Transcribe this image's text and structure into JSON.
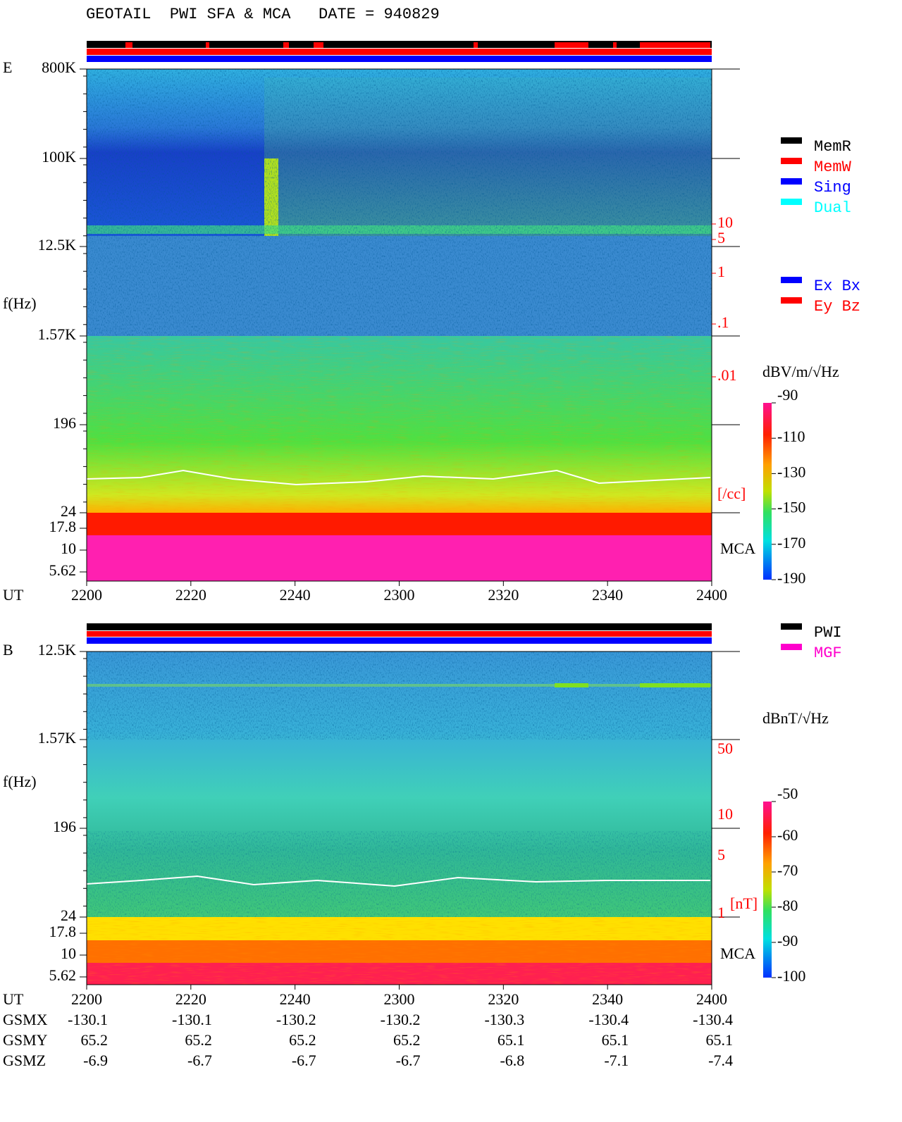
{
  "title": "GEOTAIL  PWI SFA & MCA   DATE = 940829",
  "status_legend": [
    "MemR",
    "MemW",
    "Sing",
    "Dual"
  ],
  "component_legend": [
    "Ex Bx",
    "Ey Bz"
  ],
  "panel_e": {
    "label": "E",
    "y_axis_label": "f(Hz)",
    "y_tick_labels": [
      "800K",
      "100K",
      "12.5K",
      "1.57K",
      "196",
      "24",
      "17.8",
      "10",
      "5.62"
    ],
    "x_axis_label": "UT",
    "x_tick_labels": [
      "2200",
      "2220",
      "2240",
      "2300",
      "2320",
      "2340",
      "2400"
    ],
    "mca_label": "MCA",
    "density_labels": [
      "10",
      "5",
      "1",
      ".1",
      ".01",
      "[/cc]"
    ],
    "colorbar": {
      "unit": "dBV/m/√Hz",
      "tick_labels": [
        "-90",
        "-110",
        "-130",
        "-150",
        "-170",
        "-190"
      ]
    }
  },
  "panel_b": {
    "label": "B",
    "y_axis_label": "f(Hz)",
    "source_legend": [
      "PWI",
      "MGF"
    ],
    "y_tick_labels": [
      "12.5K",
      "1.57K",
      "196",
      "24",
      "17.8",
      "10",
      "5.62"
    ],
    "mca_label": "MCA",
    "field_labels": [
      "50",
      "10",
      "5",
      "1",
      "[nT]"
    ],
    "colorbar": {
      "unit": "dBnT/√Hz",
      "tick_labels": [
        "-50",
        "-60",
        "-70",
        "-80",
        "-90",
        "-100"
      ]
    }
  },
  "orbit": {
    "x_axis_label": "UT",
    "x_tick_labels": [
      "2200",
      "2220",
      "2240",
      "2300",
      "2320",
      "2340",
      "2400"
    ],
    "rows": [
      {
        "label": "GSMX",
        "values": [
          "-130.1",
          "-130.1",
          "-130.2",
          "-130.2",
          "-130.3",
          "-130.4",
          "-130.4"
        ]
      },
      {
        "label": "GSMY",
        "values": [
          "65.2",
          "65.2",
          "65.2",
          "65.2",
          "65.1",
          "65.1",
          "65.1"
        ]
      },
      {
        "label": "GSMZ",
        "values": [
          "-6.9",
          "-6.7",
          "-6.7",
          "-6.7",
          "-6.8",
          "-7.1",
          "-7.4"
        ]
      }
    ]
  }
}
